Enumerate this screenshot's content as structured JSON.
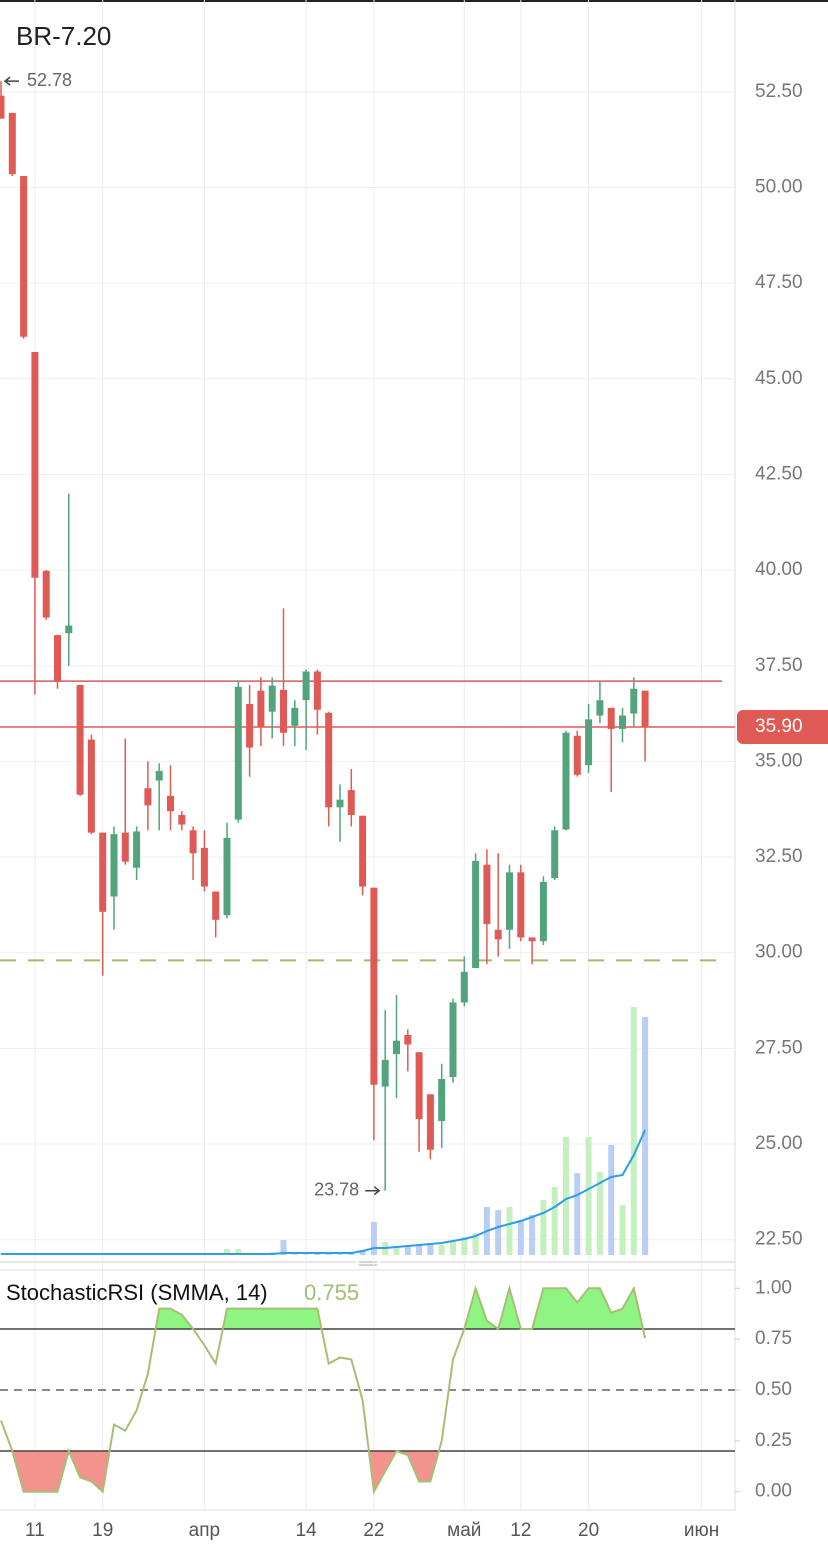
{
  "chart_data": [
    {
      "type": "candlestick",
      "title": "BR-7.20",
      "categories": [
        null,
        null,
        null,
        "11",
        null,
        null,
        null,
        null,
        null,
        "19",
        null,
        null,
        null,
        null,
        null,
        null,
        null,
        null,
        "апр",
        null,
        null,
        null,
        null,
        null,
        null,
        null,
        null,
        "14",
        null,
        null,
        null,
        null,
        null,
        "22",
        null,
        null,
        null,
        null,
        null,
        null,
        null,
        "май",
        null,
        null,
        null,
        null,
        "12",
        null,
        null,
        null,
        null,
        null,
        "20",
        null,
        null,
        null,
        null,
        null,
        null,
        null,
        null,
        null,
        "июн",
        null
      ],
      "open": [
        52.4,
        51.95,
        50.3,
        45.7,
        39.98,
        38.3,
        38.35,
        37.0,
        35.57,
        33.14,
        31.47,
        33.14,
        32.22,
        34.3,
        34.5,
        34.1,
        33.6,
        33.2,
        32.74,
        31.6,
        30.98,
        33.48,
        36.5,
        36.85,
        36.3,
        36.87,
        35.93,
        36.6,
        37.35,
        36.27,
        33.8,
        34.25,
        33.58,
        31.7,
        26.5,
        27.35,
        27.85,
        27.4,
        26.3,
        25.6,
        26.75,
        28.7,
        29.6,
        32.3,
        30.6,
        30.6,
        32.1,
        30.4,
        30.3,
        31.95,
        33.22,
        35.67,
        34.9,
        36.2,
        36.4,
        35.85,
        36.25,
        36.85,
        null,
        null,
        null,
        null,
        null,
        null
      ],
      "high": [
        52.78,
        51.95,
        50.3,
        45.7,
        40.0,
        38.3,
        42.0,
        37.0,
        35.7,
        33.14,
        33.3,
        35.6,
        33.3,
        35.0,
        34.95,
        34.9,
        33.7,
        33.3,
        33.2,
        31.6,
        33.4,
        37.1,
        37.0,
        37.2,
        37.2,
        39.0,
        36.6,
        37.4,
        37.4,
        36.3,
        34.4,
        34.8,
        33.58,
        31.7,
        28.5,
        28.9,
        28.0,
        27.4,
        26.3,
        27.1,
        28.8,
        29.9,
        32.6,
        32.7,
        32.6,
        32.3,
        32.3,
        30.4,
        32.0,
        33.3,
        35.8,
        35.8,
        36.5,
        37.1,
        36.4,
        36.4,
        37.2,
        36.85,
        null,
        null,
        null,
        null,
        null,
        null
      ],
      "low": [
        51.8,
        50.3,
        46.05,
        36.75,
        38.7,
        36.9,
        37.5,
        34.1,
        33.1,
        29.4,
        30.6,
        32.3,
        31.9,
        33.2,
        33.2,
        33.2,
        33.2,
        31.9,
        31.6,
        30.4,
        30.9,
        33.4,
        34.6,
        35.4,
        35.6,
        35.4,
        35.4,
        35.3,
        35.7,
        33.3,
        32.9,
        33.3,
        31.5,
        25.1,
        23.78,
        26.2,
        26.9,
        24.8,
        24.6,
        24.9,
        26.6,
        28.6,
        29.6,
        29.7,
        29.9,
        30.1,
        30.3,
        29.7,
        30.2,
        31.9,
        33.2,
        34.6,
        34.7,
        36.0,
        34.2,
        35.5,
        35.9,
        35.0,
        null,
        null,
        null,
        null,
        null,
        null
      ],
      "close": [
        51.8,
        50.35,
        46.1,
        39.8,
        38.76,
        37.1,
        38.55,
        34.13,
        33.14,
        31.07,
        33.1,
        32.38,
        33.17,
        33.85,
        34.75,
        33.7,
        33.35,
        32.6,
        31.73,
        30.86,
        33.0,
        36.95,
        35.36,
        35.9,
        36.98,
        35.75,
        36.4,
        37.35,
        36.35,
        33.8,
        34.0,
        33.6,
        31.73,
        26.55,
        27.2,
        27.7,
        27.6,
        25.65,
        24.85,
        26.7,
        28.7,
        29.5,
        32.4,
        30.75,
        30.35,
        32.1,
        30.4,
        30.3,
        31.85,
        33.2,
        35.75,
        34.65,
        36.1,
        36.6,
        35.85,
        36.2,
        36.9,
        35.9,
        null,
        null,
        null,
        null,
        null,
        null
      ],
      "volume": [
        1,
        1,
        1,
        1,
        1,
        1,
        1,
        1,
        1,
        1,
        1,
        1,
        1,
        1,
        1,
        1,
        1,
        1,
        1,
        1,
        6,
        6,
        2,
        2,
        3,
        15,
        3,
        3,
        3,
        3,
        3,
        3,
        5,
        33,
        13,
        8,
        8,
        10,
        12,
        10,
        14,
        18,
        22,
        48,
        45,
        48,
        35,
        40,
        55,
        68,
        118,
        82,
        118,
        83,
        110,
        50,
        248,
        238,
        null,
        null,
        null,
        null,
        null,
        null
      ],
      "volume_ma": [
        1,
        1,
        1,
        1,
        1,
        1,
        1,
        1,
        1,
        1,
        1,
        1,
        1,
        1,
        1,
        1,
        1,
        1,
        1,
        1,
        1,
        1,
        1,
        1,
        1,
        2,
        2,
        2,
        2,
        2,
        2,
        2,
        4,
        7,
        7,
        8,
        9,
        10,
        11,
        12,
        14,
        16,
        19,
        24,
        28,
        31,
        34,
        38,
        42,
        48,
        56,
        60,
        66,
        72,
        78,
        80,
        100,
        125,
        null,
        null,
        null,
        null,
        null,
        null
      ],
      "up_color": "#53a47c",
      "down_color": "#e05a55",
      "volume_up_color": "#c4f0bd",
      "volume_down_color": "#b9cdf5",
      "ma_color": "#2f9ee6",
      "ylim": [
        22.1,
        54.9
      ],
      "vlim": [
        0,
        300
      ],
      "yticks": [
        {
          "value": 22.5,
          "label": "22.50"
        },
        {
          "value": 25,
          "label": "25.00"
        },
        {
          "value": 27.5,
          "label": "27.50"
        },
        {
          "value": 30,
          "label": "30.00"
        },
        {
          "value": 32.5,
          "label": "32.50"
        },
        {
          "value": 35,
          "label": "35.00"
        },
        {
          "value": 37.5,
          "label": "37.50"
        },
        {
          "value": 40,
          "label": "40.00"
        },
        {
          "value": 42.5,
          "label": "42.50"
        },
        {
          "value": 45,
          "label": "45.00"
        },
        {
          "value": 47.5,
          "label": "47.50"
        },
        {
          "value": 50,
          "label": "50.00"
        },
        {
          "value": 52.5,
          "label": "52.50"
        }
      ],
      "grid": true,
      "last_price": {
        "value": 35.9,
        "label": "35.90",
        "color": "#e05a55"
      },
      "levels": [
        {
          "value": 37.1,
          "color": "#c9605c",
          "style": "solid"
        },
        {
          "value": 29.8,
          "color": "#9fbb6c",
          "style": "dashed"
        }
      ],
      "max_marker": 52.78,
      "min_marker": 23.78
    },
    {
      "type": "line",
      "title": "StochasticRSI (SMMA, 14)",
      "last_value": 0.755,
      "values": [
        0.35,
        0.2,
        0,
        0,
        0,
        0,
        0.2,
        0.07,
        0.05,
        0,
        0.33,
        0.3,
        0.4,
        0.58,
        0.9,
        0.9,
        0.87,
        0.8,
        0.72,
        0.63,
        0.9,
        0.9,
        0.9,
        0.9,
        0.9,
        0.9,
        0.9,
        0.9,
        0.9,
        0.63,
        0.66,
        0.65,
        0.45,
        0,
        0.1,
        0.2,
        0.18,
        0.05,
        0.05,
        0.25,
        0.65,
        0.8,
        1,
        0.84,
        0.8,
        1,
        0.8,
        0.8,
        1,
        1,
        1,
        0.93,
        1,
        1,
        0.88,
        0.9,
        1,
        0.755,
        null,
        null,
        null,
        null,
        null,
        null
      ],
      "color": "#a7bf74",
      "overbought_color": "#8ef582",
      "oversold_color": "#f3938e",
      "ylim": [
        -0.09,
        1.09
      ],
      "yticks": [
        {
          "value": 0,
          "label": "0.00"
        },
        {
          "value": 0.25,
          "label": "0.25"
        },
        {
          "value": 0.5,
          "label": "0.50"
        },
        {
          "value": 0.75,
          "label": "0.75"
        },
        {
          "value": 1,
          "label": "1.00"
        }
      ],
      "levels": [
        {
          "value": 0.8,
          "color": "#444",
          "style": "solid"
        },
        {
          "value": 0.5,
          "color": "#888",
          "style": "dashed"
        },
        {
          "value": 0.2,
          "color": "#444",
          "style": "solid"
        }
      ],
      "grid": false
    }
  ]
}
